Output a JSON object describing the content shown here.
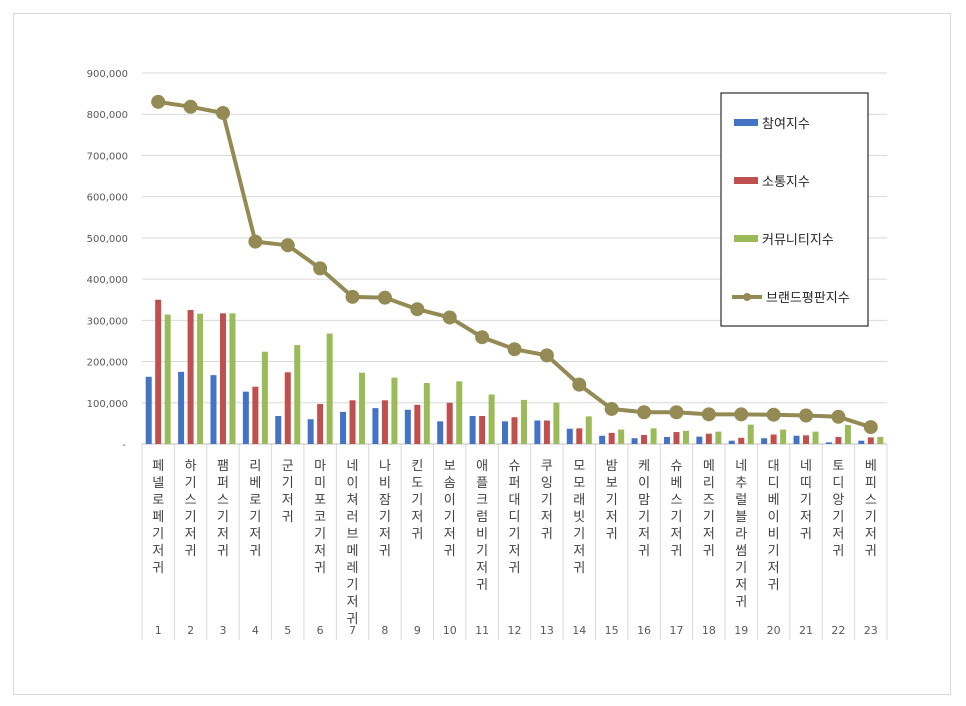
{
  "chart_data": {
    "type": "bar",
    "title": "",
    "xlabel": "",
    "ylabel": "",
    "ylim": [
      0,
      900000
    ],
    "yticks": [
      "-",
      "100,000",
      "200,000",
      "300,000",
      "400,000",
      "500,000",
      "600,000",
      "700,000",
      "800,000",
      "900,000"
    ],
    "grid": true,
    "legend_position": "right",
    "categories": [
      "페넬로페기저귀",
      "하기스기저귀",
      "팸퍼스기저귀",
      "리베로기저귀",
      "군기저귀",
      "마미포코기저귀",
      "네이쳐러브메레기저귀",
      "나비잠기저귀",
      "킨도기저귀",
      "보솜이기저귀",
      "애플크럼비기저귀",
      "슈퍼대디기저귀",
      "쿠잉기저귀",
      "모모래빗기저귀",
      "밤보기저귀",
      "케이맘기저귀",
      "슈베스기저귀",
      "메리즈기저귀",
      "네추럴블라썸기저귀",
      "대디베이비기저귀",
      "네띠기저귀",
      "토디앙기저귀",
      "베피스기저귀"
    ],
    "ranks": [
      "1",
      "2",
      "3",
      "4",
      "5",
      "6",
      "7",
      "8",
      "9",
      "10",
      "11",
      "12",
      "13",
      "14",
      "15",
      "16",
      "17",
      "18",
      "19",
      "20",
      "21",
      "22",
      "23"
    ],
    "series": [
      {
        "name": "참여지수",
        "kind": "bar",
        "color": "#4472c4",
        "values": [
          163000,
          175000,
          167000,
          127000,
          68000,
          60000,
          78000,
          87000,
          83000,
          55000,
          68000,
          55000,
          57000,
          37000,
          20000,
          14000,
          17000,
          18000,
          8000,
          14000,
          20000,
          4000,
          8000
        ]
      },
      {
        "name": "소통지수",
        "kind": "bar",
        "color": "#c0504d",
        "values": [
          350000,
          325000,
          317000,
          139000,
          174000,
          97000,
          106000,
          106000,
          95000,
          100000,
          68000,
          65000,
          57000,
          38000,
          27000,
          22000,
          29000,
          25000,
          15000,
          23000,
          21000,
          17000,
          16000
        ]
      },
      {
        "name": "커뮤니티지수",
        "kind": "bar",
        "color": "#9bbb59",
        "values": [
          314000,
          316000,
          317000,
          224000,
          240000,
          268000,
          173000,
          161000,
          148000,
          152000,
          120000,
          107000,
          100000,
          67000,
          35000,
          38000,
          32000,
          30000,
          47000,
          35000,
          30000,
          46000,
          17000
        ]
      },
      {
        "name": "브랜드평판지수",
        "kind": "line",
        "color": "#948a54",
        "values": [
          830000,
          818000,
          803000,
          491000,
          482000,
          426000,
          357000,
          355000,
          327000,
          307000,
          259000,
          230000,
          215000,
          144000,
          85000,
          77000,
          77000,
          72000,
          72000,
          71000,
          69000,
          66000,
          41000
        ]
      }
    ]
  }
}
